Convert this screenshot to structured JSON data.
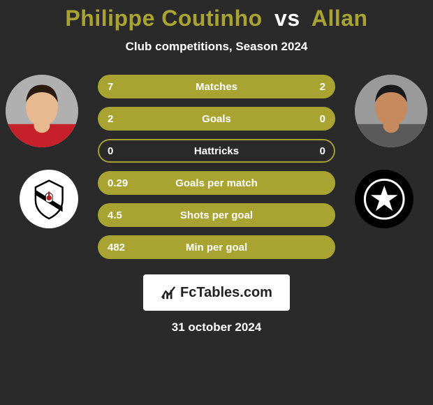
{
  "title": {
    "player1": "Philippe Coutinho",
    "vs": "vs",
    "player2": "Allan",
    "color_player1": "#a9a332",
    "color_vs": "#ffffff",
    "color_player2": "#a9a332"
  },
  "subtitle": "Club competitions, Season 2024",
  "colors": {
    "background": "#2a2a2a",
    "bar_fill": "#a9a332",
    "bar_border": "#a9a332",
    "text": "#ffffff"
  },
  "stats": [
    {
      "label": "Matches",
      "left_val": "7",
      "right_val": "2",
      "left_pct": 78,
      "right_pct": 22
    },
    {
      "label": "Goals",
      "left_val": "2",
      "right_val": "0",
      "left_pct": 100,
      "right_pct": 0
    },
    {
      "label": "Hattricks",
      "left_val": "0",
      "right_val": "0",
      "left_pct": 0,
      "right_pct": 0
    },
    {
      "label": "Goals per match",
      "left_val": "0.29",
      "right_val": "",
      "left_pct": 100,
      "right_pct": 0
    },
    {
      "label": "Shots per goal",
      "left_val": "4.5",
      "right_val": "",
      "left_pct": 100,
      "right_pct": 0
    },
    {
      "label": "Min per goal",
      "left_val": "482",
      "right_val": "",
      "left_pct": 100,
      "right_pct": 0
    }
  ],
  "brand": "FcTables.com",
  "date": "31 october 2024",
  "player1_avatar": {
    "skin": "#e8b891",
    "hair": "#2b1a10",
    "shirt": "#c6202a"
  },
  "player2_avatar": {
    "skin": "#c68a5e",
    "hair": "#1a1a1a",
    "shirt": "#5a5a5a"
  },
  "club_left": {
    "bg": "#ffffff",
    "emblem": "#000000"
  },
  "club_right": {
    "bg": "#000000",
    "emblem": "#ffffff"
  }
}
